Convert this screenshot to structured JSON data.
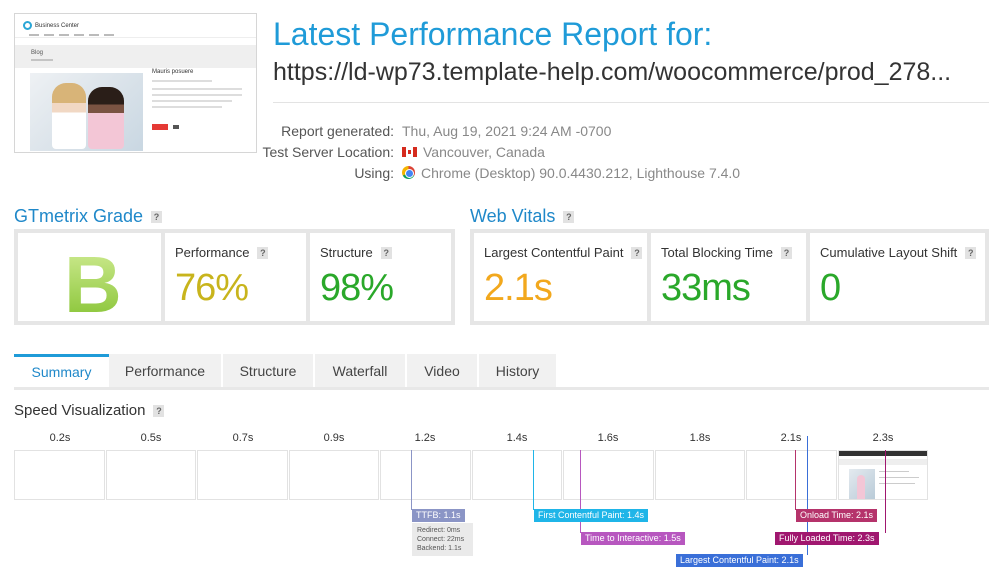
{
  "report": {
    "title": "Latest Performance Report for:",
    "url": "https://ld-wp73.template-help.com/woocommerce/prod_278..."
  },
  "thumbnail": {
    "logo_text": "Business Center",
    "page_heading": "Blog",
    "post_title": "Mauris posuere"
  },
  "meta": {
    "generated_label": "Report generated:",
    "generated_value": "Thu, Aug 19, 2021 9:24 AM -0700",
    "location_label": "Test Server Location:",
    "location_value": "Vancouver, Canada",
    "using_label": "Using:",
    "using_value": "Chrome (Desktop) 90.0.4430.212, Lighthouse 7.4.0"
  },
  "grade": {
    "section_title": "GTmetrix Grade",
    "letter": "B",
    "performance_label": "Performance",
    "performance_value": "76%",
    "structure_label": "Structure",
    "structure_value": "98%"
  },
  "vitals": {
    "section_title": "Web Vitals",
    "lcp_label": "Largest Contentful Paint",
    "lcp_value": "2.1s",
    "tbt_label": "Total Blocking Time",
    "tbt_value": "33ms",
    "cls_label": "Cumulative Layout Shift",
    "cls_value": "0"
  },
  "help_mark": "?",
  "tabs": [
    "Summary",
    "Performance",
    "Structure",
    "Waterfall",
    "Video",
    "History"
  ],
  "speed": {
    "title": "Speed Visualization",
    "times": [
      "0.2s",
      "0.5s",
      "0.7s",
      "0.9s",
      "1.2s",
      "1.4s",
      "1.6s",
      "1.8s",
      "2.1s",
      "2.3s"
    ],
    "markers": {
      "ttfb": "TTFB: 1.1s",
      "ttfb_details": [
        "Redirect: 0ms",
        "Connect: 22ms",
        "Backend: 1.1s"
      ],
      "fcp": "First Contentful Paint: 1.4s",
      "tti": "Time to Interactive: 1.5s",
      "lcp": "Largest Contentful Paint: 2.1s",
      "onload": "Onload Time: 2.1s",
      "fully_loaded": "Fully Loaded Time: 2.3s"
    }
  },
  "colors": {
    "accent": "#1f9bd8",
    "grade_yellow": "#c8b41c",
    "grade_green": "#2aa82a",
    "lcp_orange": "#f2a81d",
    "ttfb": "#8b95c6",
    "fcp": "#1fb5e8",
    "tti": "#b757bf",
    "lcp_marker": "#3a6fd8",
    "onload": "#b5336b",
    "fully_loaded": "#a0176f"
  }
}
